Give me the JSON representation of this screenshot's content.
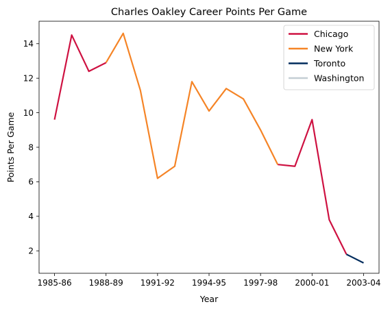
{
  "chart_data": {
    "type": "line",
    "title": "Charles Oakley Career Points Per Game",
    "xlabel": "Year",
    "ylabel": "Points Per Game",
    "x_tick_labels": [
      "1985-86",
      "1988-89",
      "1991-92",
      "1994-95",
      "1997-98",
      "2000-01",
      "2003-04"
    ],
    "x_tick_positions": [
      0,
      3,
      6,
      9,
      12,
      15,
      18
    ],
    "y_ticks": [
      2,
      4,
      6,
      8,
      10,
      12,
      14
    ],
    "xlim": [
      -0.9,
      18.9
    ],
    "ylim": [
      0.7,
      15.3
    ],
    "grid": false,
    "legend_placement": "top-right",
    "series": [
      {
        "name": "Chicago",
        "color": "#CE1141",
        "segments": [
          [
            [
              0,
              9.6
            ],
            [
              1,
              14.5
            ],
            [
              2,
              12.4
            ],
            [
              3,
              12.9
            ]
          ],
          [
            [
              13,
              7.0
            ],
            [
              14,
              6.9
            ],
            [
              15,
              9.6
            ],
            [
              16,
              3.8
            ],
            [
              17,
              1.8
            ]
          ]
        ]
      },
      {
        "name": "New York",
        "color": "#F58426",
        "segments": [
          [
            [
              3,
              12.9
            ],
            [
              4,
              14.6
            ],
            [
              5,
              11.3
            ],
            [
              6,
              6.2
            ],
            [
              7,
              6.9
            ],
            [
              8,
              11.8
            ],
            [
              9,
              10.1
            ],
            [
              10,
              11.4
            ],
            [
              11,
              10.8
            ],
            [
              12,
              9.0
            ],
            [
              13,
              7.0
            ]
          ]
        ]
      },
      {
        "name": "Toronto",
        "color": "#002B5C",
        "segments": [
          [
            [
              17,
              1.8
            ],
            [
              18,
              1.3
            ]
          ]
        ]
      },
      {
        "name": "Washington",
        "color": "#C4CED4",
        "segments": []
      }
    ]
  }
}
